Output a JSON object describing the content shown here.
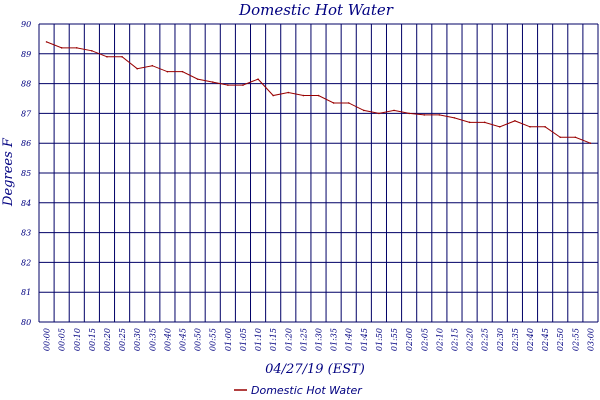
{
  "chart_data": {
    "type": "line",
    "title": "Domestic Hot Water",
    "xlabel": "04/27/19 (EST)",
    "ylabel": "Degrees F",
    "ylim": [
      80,
      90
    ],
    "yticks": [
      "80",
      "81",
      "82",
      "83",
      "84",
      "85",
      "86",
      "87",
      "88",
      "89",
      "90"
    ],
    "grid": true,
    "legend_position": "bottom",
    "colors": {
      "series": "#990000",
      "grid": "#000066",
      "text": "#000080"
    },
    "x": [
      "00:00",
      "00:05",
      "00:10",
      "00:15",
      "00:20",
      "00:25",
      "00:30",
      "00:35",
      "00:40",
      "00:45",
      "00:50",
      "00:55",
      "01:00",
      "01:05",
      "01:10",
      "01:15",
      "01:20",
      "01:25",
      "01:30",
      "01:35",
      "01:40",
      "01:45",
      "01:50",
      "01:55",
      "02:00",
      "02:05",
      "02:10",
      "02:15",
      "02:20",
      "02:25",
      "02:30",
      "02:35",
      "02:40",
      "02:45",
      "02:50",
      "02:55",
      "03:00"
    ],
    "series": [
      {
        "name": "Domestic Hot Water",
        "values": [
          89.4,
          89.2,
          89.2,
          89.1,
          88.9,
          88.9,
          88.5,
          88.6,
          88.4,
          88.4,
          88.15,
          88.05,
          87.95,
          87.95,
          88.15,
          87.6,
          87.7,
          87.6,
          87.6,
          87.35,
          87.35,
          87.1,
          87.0,
          87.1,
          87.0,
          86.95,
          86.95,
          86.85,
          86.7,
          86.7,
          86.55,
          86.75,
          86.55,
          86.55,
          86.2,
          86.2,
          86.0
        ]
      }
    ]
  }
}
